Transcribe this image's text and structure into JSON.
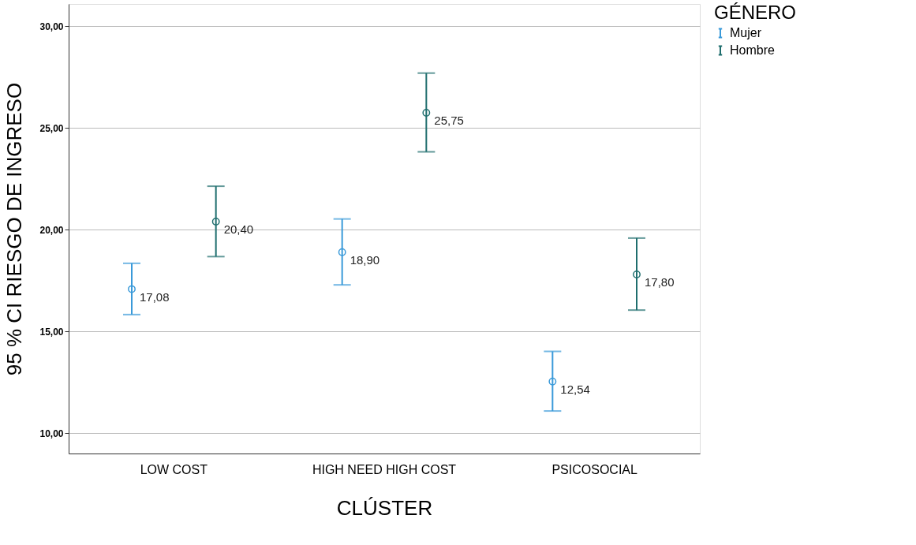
{
  "chart_data": {
    "type": "scatter",
    "xlabel": "CLÚSTER",
    "ylabel": "95 % CI RIESGO DE INGRESO",
    "legend_title": "GÉNERO",
    "categories": [
      "LOW COST",
      "HIGH NEED HIGH COST",
      "PSICOSOCIAL"
    ],
    "series": [
      {
        "name": "Mujer",
        "color": "#3a9ad9",
        "values": [
          17.08,
          18.9,
          12.54
        ],
        "errors": [
          [
            15.83,
            18.35
          ],
          [
            17.29,
            20.53
          ],
          [
            11.09,
            14.02
          ]
        ],
        "value_labels": [
          "17,08",
          "18,90",
          "12,54"
        ]
      },
      {
        "name": "Hombre",
        "color": "#1f6e6e",
        "values": [
          20.4,
          25.75,
          17.8
        ],
        "errors": [
          [
            18.68,
            22.14
          ],
          [
            23.83,
            27.7
          ],
          [
            16.05,
            19.59
          ]
        ],
        "value_labels": [
          "20,40",
          "25,75",
          "17,80"
        ]
      }
    ],
    "ylim": [
      9,
      31.1
    ],
    "yticks": [
      {
        "value": 10,
        "label": "10,00"
      },
      {
        "value": 15,
        "label": "15,00"
      },
      {
        "value": 20,
        "label": "20,00"
      },
      {
        "value": 25,
        "label": "25,00"
      },
      {
        "value": 30,
        "label": "30,00"
      }
    ],
    "grid": "y",
    "legend": "top right",
    "marker": "circle"
  }
}
